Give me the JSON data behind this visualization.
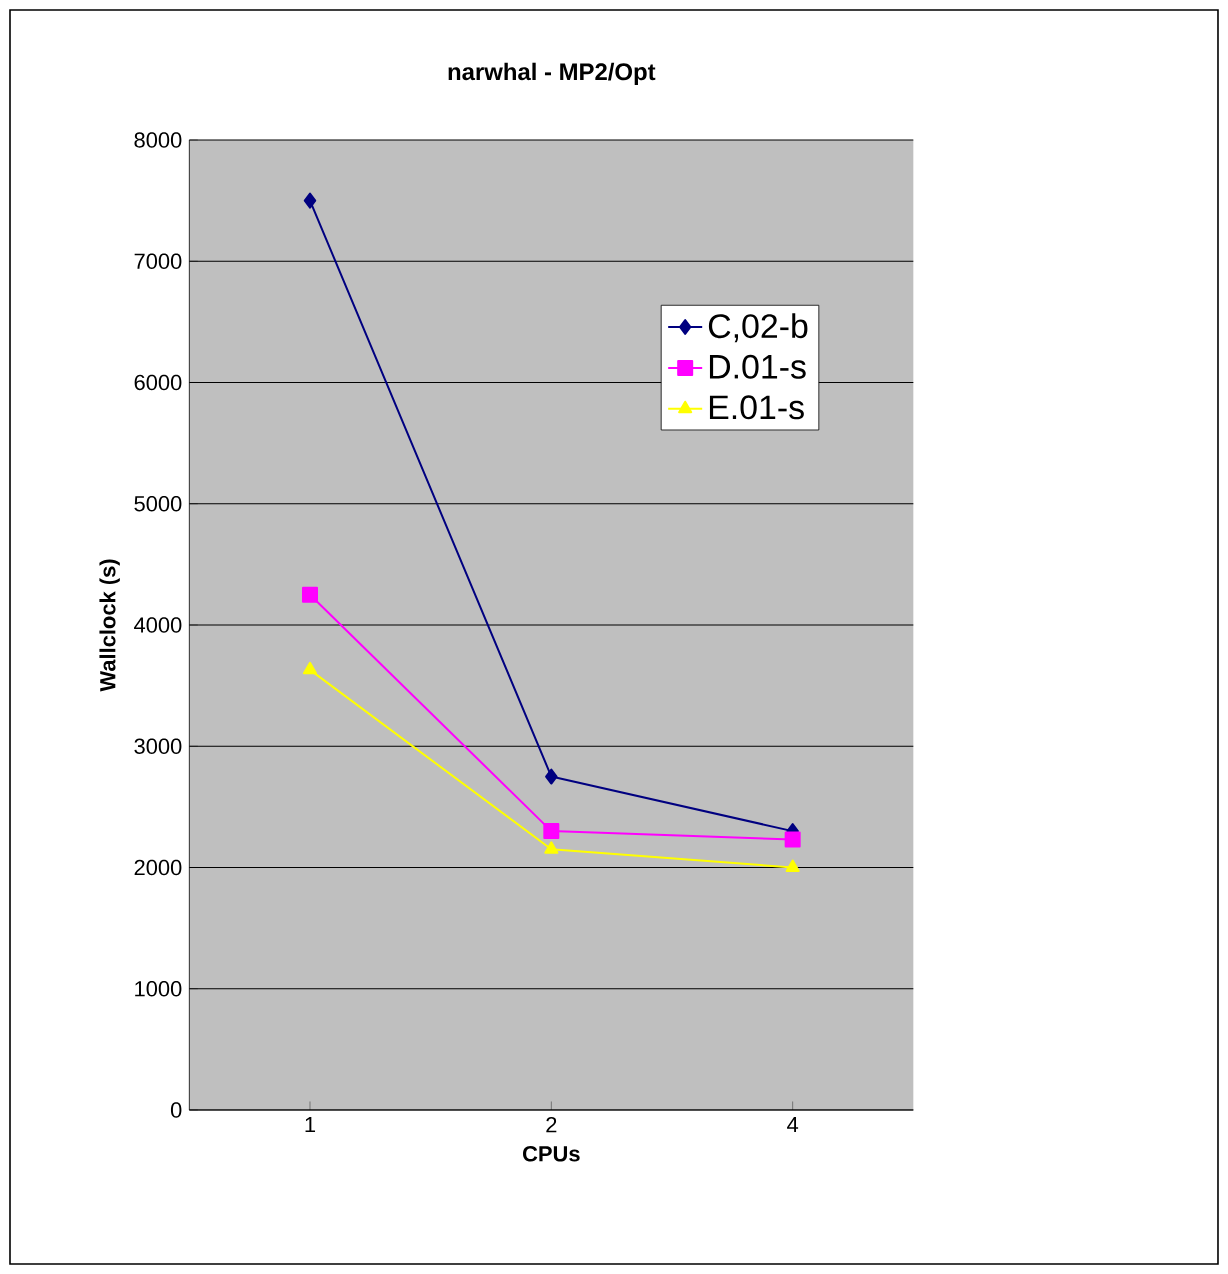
{
  "chart_data": {
    "type": "line",
    "title": "narwhal - MP2/Opt",
    "xlabel": "CPUs",
    "ylabel": "Wallclock (s)",
    "categories": [
      "1",
      "2",
      "4"
    ],
    "series": [
      {
        "name": "C,02-b",
        "color": "#000080",
        "marker": "diamond",
        "values": [
          7500,
          2750,
          2300
        ]
      },
      {
        "name": "D.01-s",
        "color": "#ff00ff",
        "marker": "square",
        "values": [
          4250,
          2300,
          2230
        ]
      },
      {
        "name": "E.01-s",
        "color": "#ffff00",
        "marker": "triangle",
        "values": [
          3630,
          2150,
          2000
        ]
      }
    ],
    "ylim": [
      0,
      8000
    ],
    "yticks": [
      0,
      1000,
      2000,
      3000,
      4000,
      5000,
      6000,
      7000,
      8000
    ],
    "grid": "y",
    "legend": "top right",
    "line_style": "solid"
  }
}
